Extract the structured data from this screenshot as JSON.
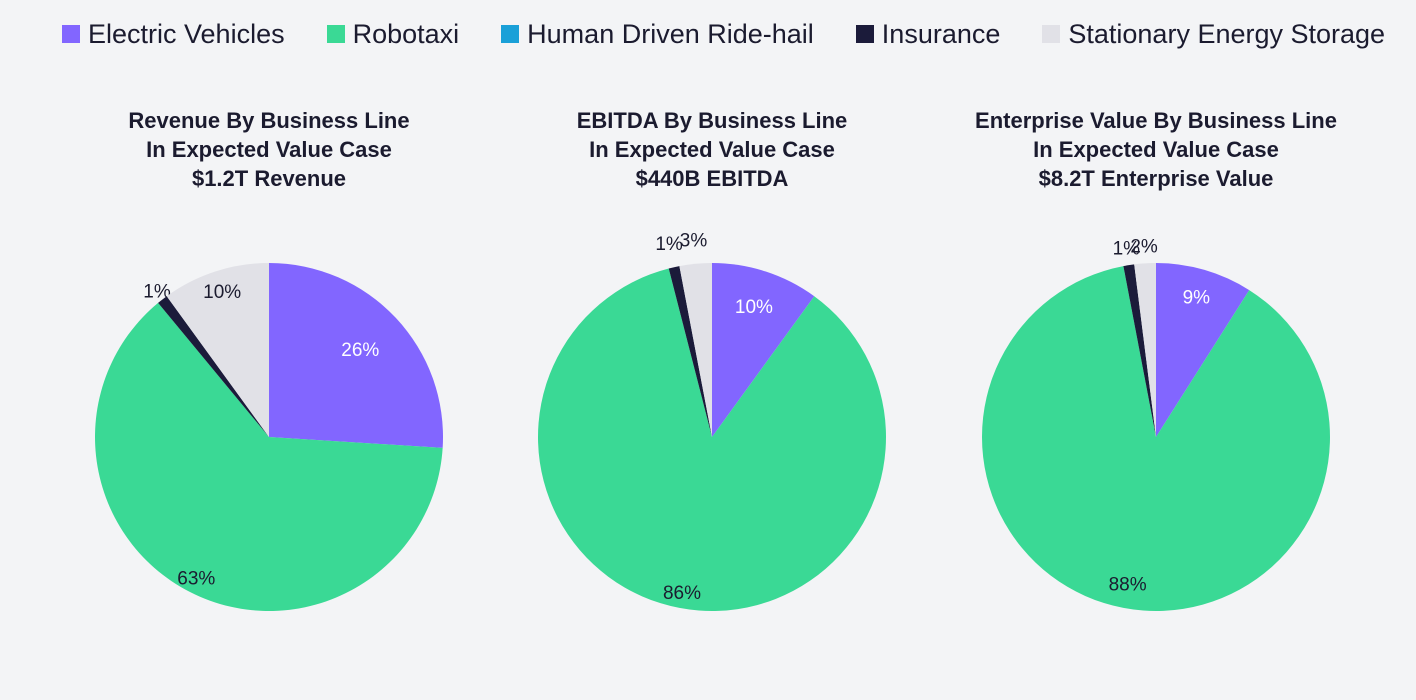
{
  "colors": {
    "Electric Vehicles": "#8266ff",
    "Robotaxi": "#3ad995",
    "Human Driven Ride-hail": "#1aa0d8",
    "Insurance": "#1b1b3a",
    "Stationary Energy Storage": "#e1e1e7"
  },
  "legend": [
    {
      "label": "Electric Vehicles",
      "color": "#8266ff"
    },
    {
      "label": "Robotaxi",
      "color": "#3ad995"
    },
    {
      "label": "Human Driven Ride-hail",
      "color": "#1aa0d8"
    },
    {
      "label": "Insurance",
      "color": "#1b1b3a"
    },
    {
      "label": "Stationary Energy Storage",
      "color": "#e1e1e7"
    }
  ],
  "chart_data": [
    {
      "type": "pie",
      "title": [
        "Revenue By Business Line",
        "In Expected Value Case",
        "$1.2T Revenue"
      ],
      "categories": [
        "Electric Vehicles",
        "Robotaxi",
        "Human Driven Ride-hail",
        "Insurance",
        "Stationary Energy Storage"
      ],
      "values": [
        26,
        63,
        0,
        1,
        10
      ],
      "labels": [
        "26%",
        "63%",
        "",
        "1%",
        "10%"
      ]
    },
    {
      "type": "pie",
      "title": [
        "EBITDA By Business Line",
        "In Expected Value Case",
        "$440B EBITDA"
      ],
      "categories": [
        "Electric Vehicles",
        "Robotaxi",
        "Human Driven Ride-hail",
        "Insurance",
        "Stationary Energy Storage"
      ],
      "values": [
        10,
        86,
        0,
        1,
        3
      ],
      "labels": [
        "10%",
        "86%",
        "",
        "1%",
        "3%"
      ]
    },
    {
      "type": "pie",
      "title": [
        "Enterprise Value By Business Line",
        "In Expected Value Case",
        "$8.2T Enterprise Value"
      ],
      "categories": [
        "Electric Vehicles",
        "Robotaxi",
        "Human Driven Ride-hail",
        "Insurance",
        "Stationary Energy Storage"
      ],
      "values": [
        9,
        88,
        0,
        1,
        2
      ],
      "labels": [
        "9%",
        "88%",
        "",
        "1%",
        "2%"
      ]
    }
  ]
}
